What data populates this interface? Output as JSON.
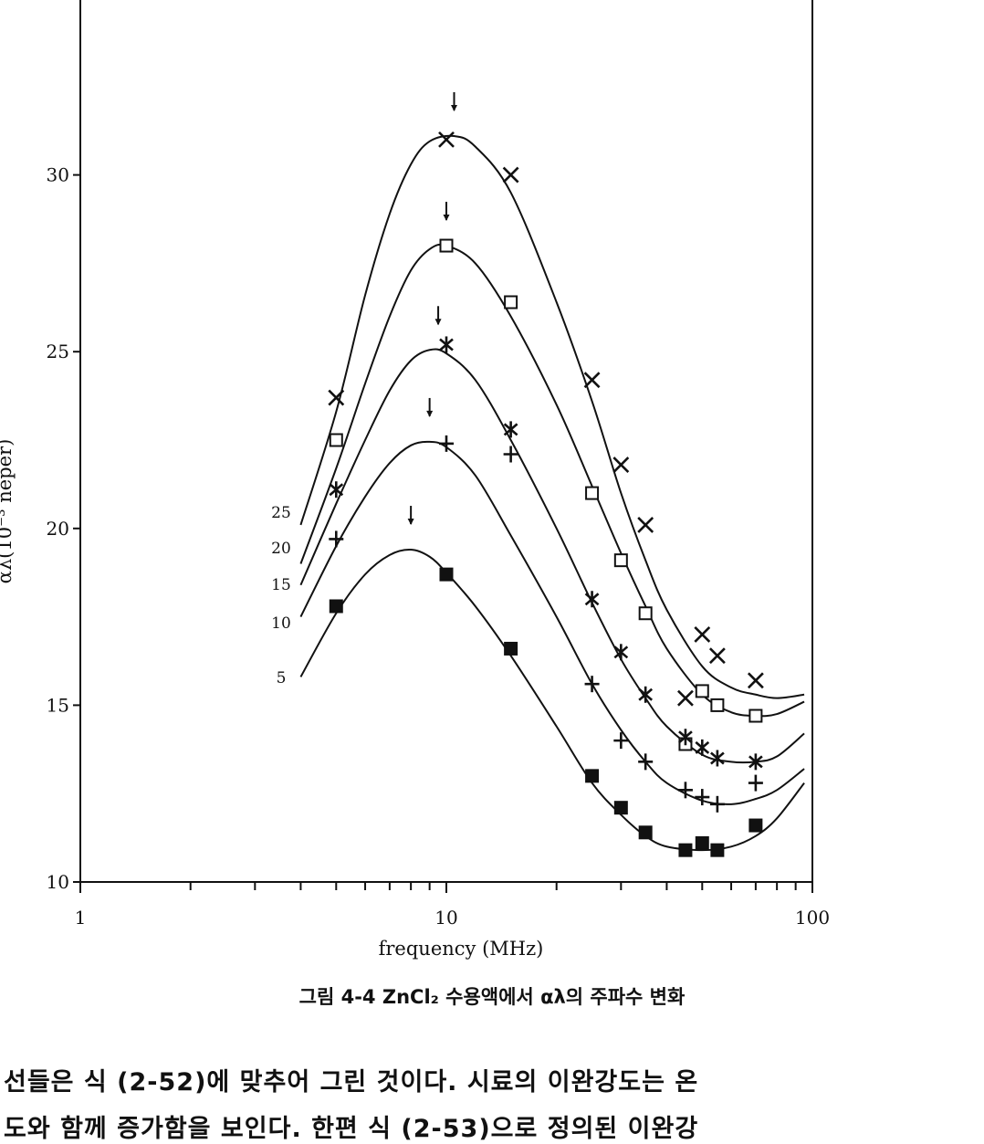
{
  "chart_data": {
    "type": "scatter",
    "title": "",
    "xlabel": "frequency (MHz)",
    "ylabel": "αλ(10⁻³ neper)",
    "x_scale": "log",
    "xlim": [
      1,
      100
    ],
    "ylim": [
      10,
      35
    ],
    "x_ticks": [
      1,
      10,
      100
    ],
    "y_ticks": [
      10,
      15,
      20,
      25,
      30
    ],
    "grid": false,
    "legend": "inline",
    "series": [
      {
        "name": "25",
        "marker": "x",
        "points": [
          [
            5,
            23.7
          ],
          [
            10,
            31.0
          ],
          [
            15,
            30.0
          ],
          [
            25,
            24.2
          ],
          [
            30,
            21.8
          ],
          [
            35,
            20.1
          ],
          [
            50,
            17.0
          ],
          [
            55,
            16.4
          ],
          [
            70,
            15.7
          ],
          [
            45,
            15.2
          ]
        ],
        "peak_arrow": 10.5,
        "curve": [
          [
            4,
            20.1
          ],
          [
            5,
            23.3
          ],
          [
            6,
            26.6
          ],
          [
            7,
            28.9
          ],
          [
            8,
            30.3
          ],
          [
            9,
            30.95
          ],
          [
            10.5,
            31.1
          ],
          [
            12,
            30.8
          ],
          [
            15,
            29.5
          ],
          [
            20,
            26.4
          ],
          [
            25,
            23.6
          ],
          [
            30,
            21.0
          ],
          [
            35,
            19.1
          ],
          [
            40,
            17.7
          ],
          [
            50,
            16.1
          ],
          [
            60,
            15.5
          ],
          [
            70,
            15.3
          ],
          [
            80,
            15.2
          ],
          [
            95,
            15.3
          ]
        ]
      },
      {
        "name": "20",
        "marker": "square",
        "points": [
          [
            5,
            22.5
          ],
          [
            10,
            28.0
          ],
          [
            15,
            26.4
          ],
          [
            25,
            21.0
          ],
          [
            30,
            19.1
          ],
          [
            35,
            17.6
          ],
          [
            45,
            13.9
          ],
          [
            50,
            15.4
          ],
          [
            55,
            15.0
          ],
          [
            70,
            14.7
          ]
        ],
        "peak_arrow": 10,
        "curve": [
          [
            4,
            19.0
          ],
          [
            5,
            21.7
          ],
          [
            6,
            24.1
          ],
          [
            7,
            26.0
          ],
          [
            8,
            27.3
          ],
          [
            9,
            27.9
          ],
          [
            10,
            28.0
          ],
          [
            12,
            27.5
          ],
          [
            15,
            26.0
          ],
          [
            20,
            23.5
          ],
          [
            25,
            21.2
          ],
          [
            30,
            19.3
          ],
          [
            35,
            17.8
          ],
          [
            40,
            16.6
          ],
          [
            50,
            15.3
          ],
          [
            60,
            14.8
          ],
          [
            70,
            14.7
          ],
          [
            80,
            14.75
          ],
          [
            95,
            15.1
          ]
        ]
      },
      {
        "name": "15",
        "marker": "asterisk",
        "points": [
          [
            5,
            21.1
          ],
          [
            10,
            25.2
          ],
          [
            15,
            22.8
          ],
          [
            25,
            18.0
          ],
          [
            30,
            16.5
          ],
          [
            35,
            15.3
          ],
          [
            45,
            14.1
          ],
          [
            50,
            13.8
          ],
          [
            55,
            13.5
          ],
          [
            70,
            13.4
          ]
        ],
        "peak_arrow": 9.5,
        "curve": [
          [
            4,
            18.4
          ],
          [
            5,
            20.7
          ],
          [
            6,
            22.5
          ],
          [
            7,
            23.9
          ],
          [
            8,
            24.75
          ],
          [
            9,
            25.05
          ],
          [
            10,
            24.95
          ],
          [
            12,
            24.2
          ],
          [
            15,
            22.5
          ],
          [
            20,
            20.0
          ],
          [
            25,
            17.9
          ],
          [
            30,
            16.3
          ],
          [
            35,
            15.2
          ],
          [
            40,
            14.4
          ],
          [
            50,
            13.6
          ],
          [
            60,
            13.4
          ],
          [
            70,
            13.4
          ],
          [
            80,
            13.55
          ],
          [
            95,
            14.2
          ]
        ]
      },
      {
        "name": "10",
        "marker": "plus",
        "points": [
          [
            5,
            19.7
          ],
          [
            10,
            22.4
          ],
          [
            15,
            22.1
          ],
          [
            25,
            15.6
          ],
          [
            30,
            14.0
          ],
          [
            35,
            13.4
          ],
          [
            45,
            12.6
          ],
          [
            50,
            12.4
          ],
          [
            55,
            12.2
          ],
          [
            70,
            12.8
          ]
        ],
        "peak_arrow": 9,
        "curve": [
          [
            4,
            17.5
          ],
          [
            5,
            19.5
          ],
          [
            6,
            20.9
          ],
          [
            7,
            21.85
          ],
          [
            8,
            22.35
          ],
          [
            9,
            22.45
          ],
          [
            10,
            22.3
          ],
          [
            12,
            21.5
          ],
          [
            15,
            19.8
          ],
          [
            20,
            17.5
          ],
          [
            25,
            15.6
          ],
          [
            30,
            14.3
          ],
          [
            35,
            13.4
          ],
          [
            40,
            12.8
          ],
          [
            50,
            12.3
          ],
          [
            60,
            12.2
          ],
          [
            70,
            12.35
          ],
          [
            80,
            12.6
          ],
          [
            95,
            13.2
          ]
        ]
      },
      {
        "name": "5",
        "marker": "filled-square",
        "points": [
          [
            5,
            17.8
          ],
          [
            10,
            18.7
          ],
          [
            15,
            16.6
          ],
          [
            25,
            13.0
          ],
          [
            30,
            12.1
          ],
          [
            35,
            11.4
          ],
          [
            45,
            10.9
          ],
          [
            50,
            11.1
          ],
          [
            55,
            10.9
          ],
          [
            70,
            11.6
          ]
        ],
        "peak_arrow": 8,
        "curve": [
          [
            4,
            15.8
          ],
          [
            5,
            17.6
          ],
          [
            6,
            18.7
          ],
          [
            7,
            19.25
          ],
          [
            8,
            19.4
          ],
          [
            9,
            19.2
          ],
          [
            10,
            18.75
          ],
          [
            12,
            17.8
          ],
          [
            15,
            16.4
          ],
          [
            20,
            14.4
          ],
          [
            25,
            12.8
          ],
          [
            30,
            11.9
          ],
          [
            35,
            11.3
          ],
          [
            40,
            11.0
          ],
          [
            50,
            10.9
          ],
          [
            60,
            11.0
          ],
          [
            70,
            11.3
          ],
          [
            80,
            11.8
          ],
          [
            95,
            12.8
          ]
        ]
      }
    ]
  },
  "caption": "그림 4-4  ZnCl₂ 수용액에서 αλ의 주파수 변화",
  "body_text": [
    "선들은 식 (2-52)에 맞추어 그린 것이다. 시료의 이완강도는 온",
    "도와 함께 증가함을 보인다. 한편 식 (2-53)으로 정의된 이완강"
  ]
}
